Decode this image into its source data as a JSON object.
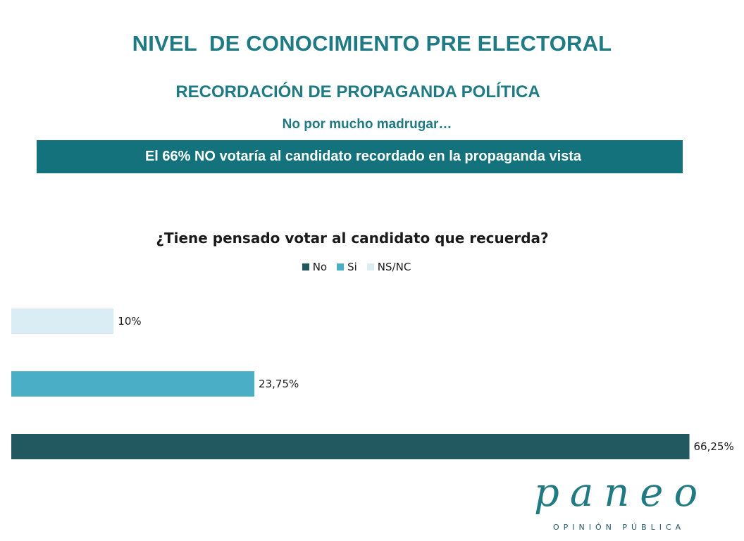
{
  "header": {
    "title": "NIVEL  DE CONOCIMIENTO PRE ELECTORAL",
    "subtitle": "RECORDACIÓN DE PROPAGANDA POLÍTICA",
    "tagline": "No por mucho madrugar…",
    "banner": "El 66% NO votaría al candidato recordado en la propaganda vista"
  },
  "colors": {
    "accent": "#1f7a84",
    "banner": "#13727b",
    "no": "#22585f",
    "si": "#4aafc6",
    "nsnc": "#daedf5"
  },
  "chart_data": {
    "type": "bar",
    "orientation": "horizontal",
    "title": "¿Tiene pensado votar al candidato que recuerda?",
    "legend_position": "top",
    "xlim": [
      0,
      70
    ],
    "grid": false,
    "series": [
      {
        "name": "NS/NC",
        "value": 10,
        "label": "10%",
        "color": "#daedf5"
      },
      {
        "name": "Si",
        "value": 23.75,
        "label": "23,75%",
        "color": "#4aafc6"
      },
      {
        "name": "No",
        "value": 66.25,
        "label": "66,25%",
        "color": "#22585f"
      }
    ],
    "legend": [
      {
        "name": "No",
        "color": "#22585f"
      },
      {
        "name": "Si",
        "color": "#4aafc6"
      },
      {
        "name": "NS/NC",
        "color": "#daedf5"
      }
    ]
  },
  "logo": {
    "name": "paneo",
    "tagline": "OPINIÓN PÚBLICA"
  }
}
